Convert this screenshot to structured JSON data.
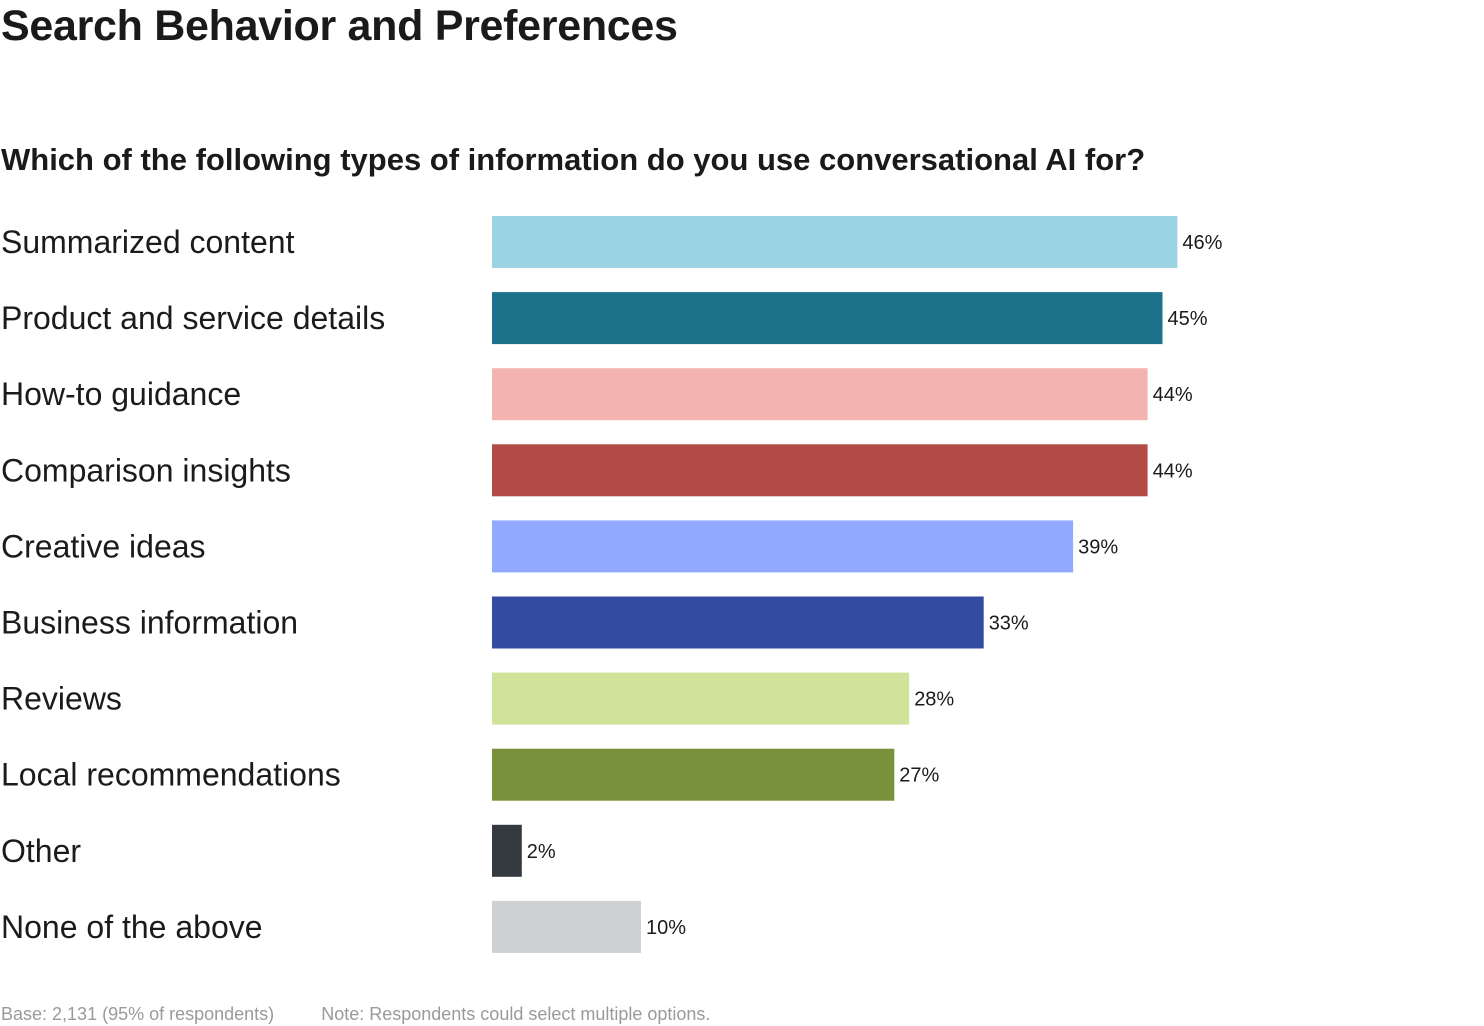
{
  "page": {
    "title": "Search Behavior and Preferences",
    "question": "Which of the following types of information do you use conversational AI for?",
    "footer_base": "Base: 2,131 (95% of respondents)",
    "footer_note": "Note: Respondents could select multiple options."
  },
  "chart_data": {
    "type": "bar",
    "orientation": "horizontal",
    "title": "Which of the following types of information do you use conversational AI for?",
    "categories": [
      "Summarized content",
      "Product and service details",
      "How-to guidance",
      "Comparison insights",
      "Creative ideas",
      "Business information",
      "Reviews",
      "Local recommendations",
      "Other",
      "None of the above"
    ],
    "values": [
      46,
      45,
      44,
      44,
      39,
      33,
      28,
      27,
      2,
      10
    ],
    "value_labels": [
      "46%",
      "45%",
      "44%",
      "44%",
      "39%",
      "33%",
      "28%",
      "27%",
      "2%",
      "10%"
    ],
    "unit": "%",
    "colors": [
      "#9dd4e3",
      "#1c728a",
      "#f3b3b0",
      "#b24a45",
      "#91a9fe",
      "#334ba2",
      "#d0e39b",
      "#78913a",
      "#353a40",
      "#cdd1d4"
    ],
    "grid": false,
    "legend": "none",
    "xlabel": "",
    "ylabel": ""
  }
}
